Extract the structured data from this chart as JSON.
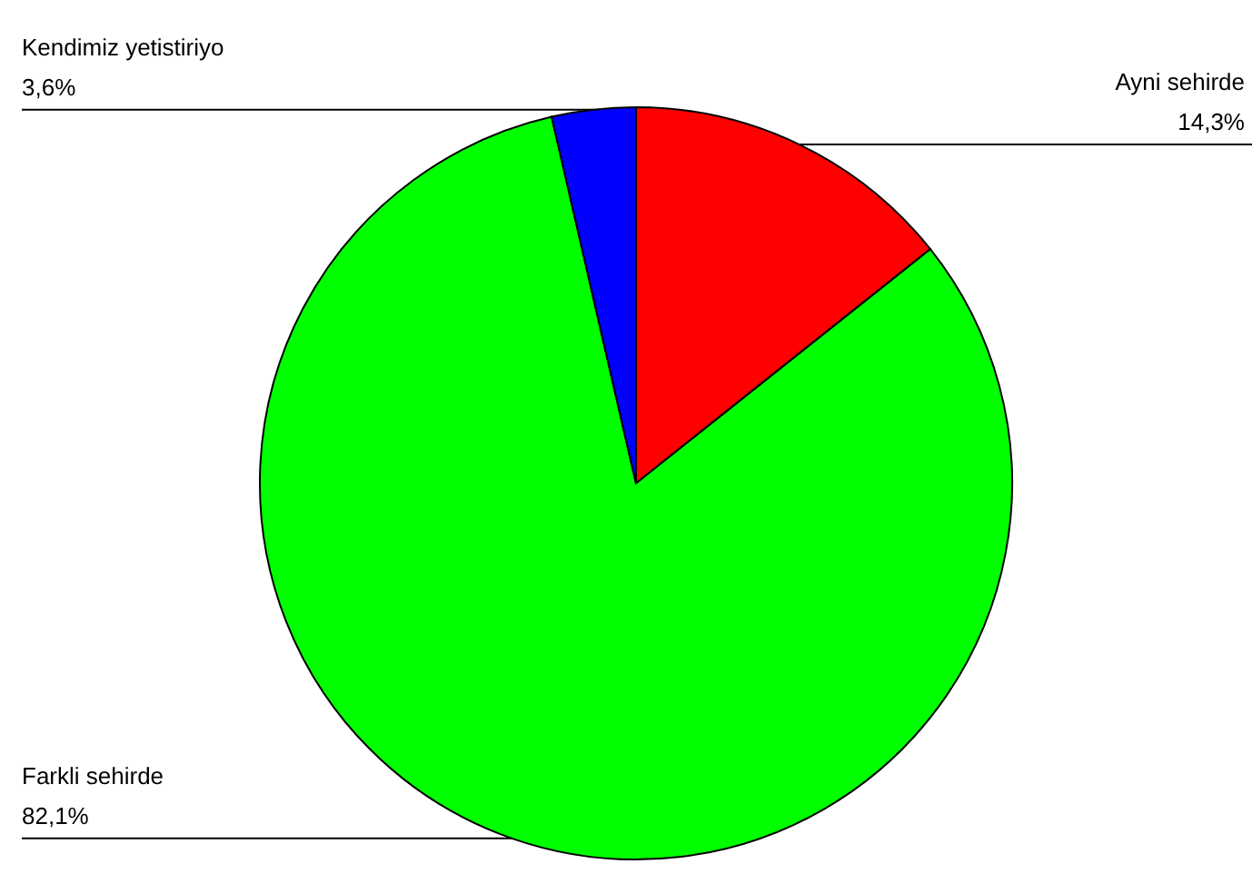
{
  "chart_data": {
    "type": "pie",
    "categories": [
      "Ayni sehirde",
      "Farkli sehirde",
      "Kendimiz yetistiriyo"
    ],
    "values": [
      14.3,
      82.1,
      3.6
    ],
    "colors": [
      "#ff0000",
      "#00ff00",
      "#0000ff"
    ],
    "value_labels": [
      "14,3%",
      "82,1%",
      "3,6%"
    ]
  }
}
